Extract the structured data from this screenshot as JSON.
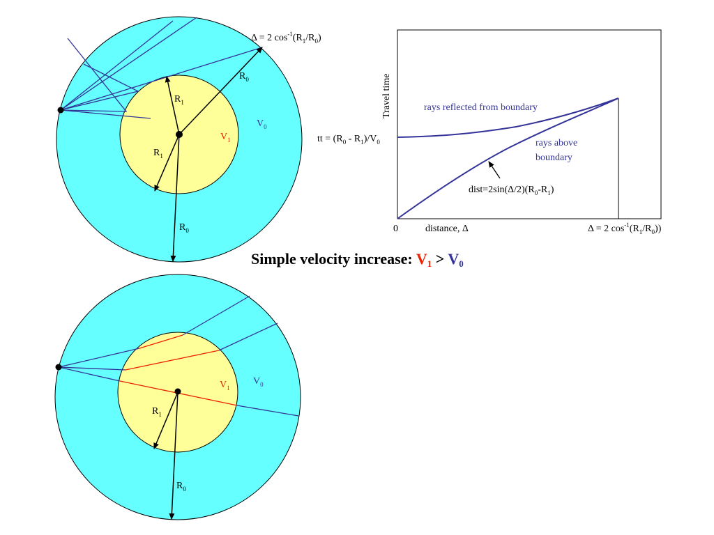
{
  "title": {
    "prefix": "Simple velocity increase: ",
    "v1": "V",
    "v1_sub": "1",
    "gt": " > ",
    "v0": "V",
    "v0_sub": "0"
  },
  "top_diagram": {
    "delta_label": "Δ = 2 cos",
    "delta_exp": "-1",
    "delta_paren_open": "(R",
    "delta_r1_sub": "1",
    "delta_slash": "/R",
    "delta_r0_sub": "0",
    "delta_close": ")",
    "r0_a": "R",
    "r0_a_sub": "0",
    "r1_a": "R",
    "r1_a_sub": "1",
    "r1_b": "R",
    "r1_b_sub": "1",
    "r0_b": "R",
    "r0_b_sub": "0",
    "v1": "V",
    "v1_sub": "1",
    "v0": "V",
    "v0_sub": "0"
  },
  "bottom_diagram": {
    "r1": "R",
    "r1_sub": "1",
    "r0": "R",
    "r0_sub": "0",
    "v1": "V",
    "v1_sub": "1",
    "v0": "V",
    "v0_sub": "0"
  },
  "graph": {
    "ylabel": "Travel time",
    "tt_prefix": "tt = (R",
    "tt_r0_sub": "0",
    "tt_mid": " - R",
    "tt_r1_sub": "1",
    "tt_close": ")/V",
    "tt_v0_sub": "0",
    "reflected_label": "rays reflected from boundary",
    "above_label_1": "rays above",
    "above_label_2": "boundary",
    "dist_prefix": "dist=2sin(Δ/2)(R",
    "dist_r0_sub": "0",
    "dist_mid": "-R",
    "dist_r1_sub": "1",
    "dist_close": ")",
    "x_zero": "0",
    "xlabel": "distance, Δ",
    "xend_prefix": "Δ = 2 cos",
    "xend_exp": "-1",
    "xend_open": "(R",
    "xend_r1_sub": "1",
    "xend_slash": "/R",
    "xend_r0_sub": "0",
    "xend_close": "))"
  },
  "colors": {
    "outer": "#66ffff",
    "inner": "#ffff99",
    "ray_blue": "#333399",
    "ray_red": "#ee2200"
  }
}
